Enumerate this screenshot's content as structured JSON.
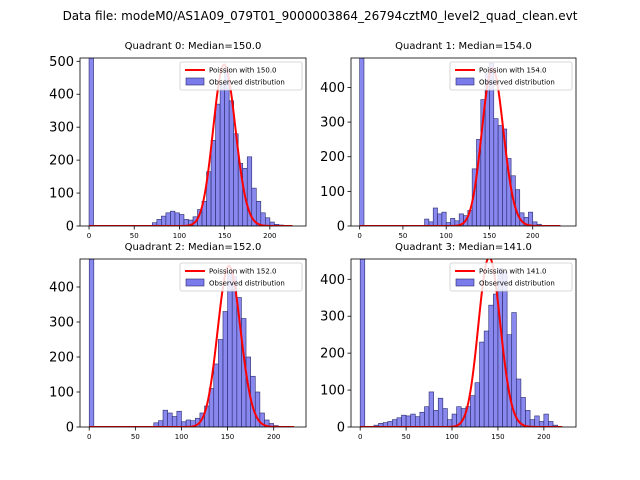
{
  "suptitle": "Data file: modeM0/AS1A09_079T01_9000003864_26794cztM0_level2_quad_clean.evt",
  "colors": {
    "bar_fill": "#7b7bec",
    "bar_edge": "#2a2a6e",
    "poisson_line": "#ff0000"
  },
  "chart_data": [
    {
      "type": "bar",
      "title": "Quadrant 0: Median=150.0",
      "legend": {
        "line": "Poission with 150.0",
        "bars": "Observed distribution",
        "position": "upper right"
      },
      "xlim": [
        -10,
        240
      ],
      "ylim": [
        0,
        510
      ],
      "xticks": [
        0,
        50,
        100,
        150,
        200
      ],
      "yticks": [
        0,
        100,
        200,
        300,
        400,
        500
      ],
      "bin_width": 5,
      "bin_starts": [
        0,
        5,
        10,
        15,
        20,
        25,
        30,
        35,
        40,
        45,
        50,
        55,
        60,
        65,
        70,
        75,
        80,
        85,
        90,
        95,
        100,
        105,
        110,
        115,
        120,
        125,
        130,
        135,
        140,
        145,
        150,
        155,
        160,
        165,
        170,
        175,
        180,
        185,
        190,
        195,
        200,
        205,
        210,
        215,
        220,
        225
      ],
      "counts": [
        510,
        0,
        0,
        0,
        0,
        0,
        0,
        0,
        0,
        0,
        0,
        0,
        0,
        0,
        10,
        20,
        30,
        40,
        45,
        40,
        35,
        20,
        18,
        28,
        50,
        75,
        165,
        260,
        370,
        430,
        480,
        380,
        280,
        190,
        175,
        210,
        115,
        75,
        40,
        25,
        12,
        5,
        3,
        1,
        0,
        0
      ],
      "poisson_mean": 150.0,
      "poisson_peak": 490,
      "poisson_x_range": [
        0,
        225
      ]
    },
    {
      "type": "bar",
      "title": "Quadrant 1: Median=154.0",
      "legend": {
        "line": "Poission with 154.0",
        "bars": "Observed distribution",
        "position": "upper right"
      },
      "xlim": [
        -10,
        250
      ],
      "ylim": [
        0,
        485
      ],
      "xticks": [
        0,
        50,
        100,
        150,
        200
      ],
      "yticks": [
        0,
        100,
        200,
        300,
        400
      ],
      "bin_width": 5,
      "bin_starts": [
        0,
        5,
        10,
        15,
        20,
        25,
        30,
        35,
        40,
        45,
        50,
        55,
        60,
        65,
        70,
        75,
        80,
        85,
        90,
        95,
        100,
        105,
        110,
        115,
        120,
        125,
        130,
        135,
        140,
        145,
        150,
        155,
        160,
        165,
        170,
        175,
        180,
        185,
        190,
        195,
        200,
        205,
        210,
        215,
        220,
        225,
        230
      ],
      "counts": [
        485,
        0,
        0,
        0,
        0,
        0,
        0,
        0,
        0,
        0,
        0,
        0,
        0,
        0,
        0,
        20,
        12,
        52,
        35,
        40,
        10,
        22,
        15,
        35,
        30,
        45,
        165,
        250,
        365,
        440,
        470,
        310,
        290,
        280,
        195,
        145,
        105,
        38,
        25,
        40,
        12,
        5,
        2,
        0,
        0,
        0,
        0
      ],
      "poisson_mean": 154.0,
      "poisson_peak": 455,
      "poisson_x_range": [
        0,
        232
      ]
    },
    {
      "type": "bar",
      "title": "Quadrant 2: Median=152.0",
      "legend": {
        "line": "Poission with 152.0",
        "bars": "Observed distribution",
        "position": "upper right"
      },
      "xlim": [
        -10,
        235
      ],
      "ylim": [
        0,
        480
      ],
      "xticks": [
        0,
        50,
        100,
        150,
        200
      ],
      "yticks": [
        0,
        100,
        200,
        300,
        400
      ],
      "bin_width": 5,
      "bin_starts": [
        0,
        5,
        10,
        15,
        20,
        25,
        30,
        35,
        40,
        45,
        50,
        55,
        60,
        65,
        70,
        75,
        80,
        85,
        90,
        95,
        100,
        105,
        110,
        115,
        120,
        125,
        130,
        135,
        140,
        145,
        150,
        155,
        160,
        165,
        170,
        175,
        180,
        185,
        190,
        195,
        200,
        205,
        210,
        215,
        220
      ],
      "counts": [
        480,
        0,
        0,
        0,
        0,
        0,
        0,
        0,
        0,
        0,
        0,
        0,
        0,
        0,
        12,
        18,
        48,
        40,
        30,
        45,
        15,
        20,
        18,
        25,
        40,
        60,
        110,
        180,
        250,
        330,
        440,
        430,
        370,
        310,
        200,
        145,
        100,
        40,
        20,
        10,
        4,
        2,
        0,
        0,
        0
      ],
      "poisson_mean": 152.0,
      "poisson_peak": 460,
      "poisson_x_range": [
        0,
        222
      ]
    },
    {
      "type": "bar",
      "title": "Quadrant 3: Median=141.0",
      "legend": {
        "line": "Poission with 141.0",
        "bars": "Observed distribution",
        "position": "upper right"
      },
      "xlim": [
        -10,
        235
      ],
      "ylim": [
        0,
        455
      ],
      "xticks": [
        0,
        50,
        100,
        150,
        200
      ],
      "yticks": [
        0,
        100,
        200,
        300,
        400
      ],
      "bin_width": 5,
      "bin_starts": [
        0,
        5,
        10,
        15,
        20,
        25,
        30,
        35,
        40,
        45,
        50,
        55,
        60,
        65,
        70,
        75,
        80,
        85,
        90,
        95,
        100,
        105,
        110,
        115,
        120,
        125,
        130,
        135,
        140,
        145,
        150,
        155,
        160,
        165,
        170,
        175,
        180,
        185,
        190,
        195,
        200,
        205,
        210,
        215
      ],
      "counts": [
        455,
        0,
        0,
        5,
        10,
        12,
        15,
        20,
        25,
        32,
        30,
        35,
        28,
        40,
        55,
        95,
        45,
        78,
        50,
        20,
        35,
        55,
        50,
        55,
        85,
        120,
        230,
        260,
        330,
        360,
        430,
        420,
        250,
        310,
        130,
        80,
        45,
        20,
        30,
        15,
        35,
        15,
        5,
        0
      ],
      "poisson_mean": 141.0,
      "poisson_peak": 460,
      "poisson_x_range": [
        0,
        220
      ]
    }
  ]
}
